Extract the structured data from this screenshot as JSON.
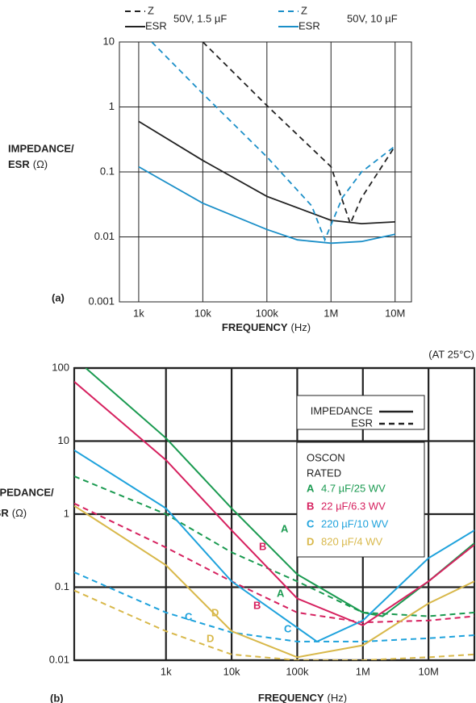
{
  "chart_data": [
    {
      "type": "line",
      "panel": "(a)",
      "xlabel": "FREQUENCY",
      "xlabel_unit": "(Hz)",
      "ylabel": [
        "IMPEDANCE/",
        "ESR"
      ],
      "ylabel_unit": "(Ω)",
      "log_x": true,
      "log_y": true,
      "grid": true,
      "xlim": [
        500,
        18000000
      ],
      "ylim": [
        0.001,
        10
      ],
      "xticks": [
        {
          "value": 1000,
          "label": "1k"
        },
        {
          "value": 10000,
          "label": "10k"
        },
        {
          "value": 100000,
          "label": "100k"
        },
        {
          "value": 1000000,
          "label": "1M"
        },
        {
          "value": 10000000,
          "label": "10M"
        }
      ],
      "yticks": [
        0.001,
        0.01,
        0.1,
        1,
        10
      ],
      "legend_groups": [
        "50V, 1.5 µF",
        "50V, 10 µF"
      ],
      "series": [
        {
          "name": "Z",
          "style": "dashed",
          "color": "#222222",
          "x": [
            10000,
            100000,
            1000000,
            2000000,
            3000000,
            10000000
          ],
          "values": [
            10,
            1.05,
            0.12,
            0.016,
            0.04,
            0.25
          ]
        },
        {
          "name": "ESR",
          "style": "solid",
          "color": "#222222",
          "x": [
            1000,
            10000,
            100000,
            1000000,
            3000000,
            10000000
          ],
          "values": [
            0.6,
            0.15,
            0.042,
            0.018,
            0.016,
            0.017
          ]
        },
        {
          "name": "Z",
          "style": "dashed",
          "color": "#1b8fc8",
          "x": [
            1600,
            10000,
            100000,
            500000,
            800000,
            1500000,
            3000000,
            10000000
          ],
          "values": [
            10,
            1.6,
            0.17,
            0.03,
            0.009,
            0.04,
            0.1,
            0.25
          ]
        },
        {
          "name": "ESR",
          "style": "solid",
          "color": "#1b8fc8",
          "x": [
            1000,
            10000,
            100000,
            300000,
            1000000,
            3000000,
            10000000
          ],
          "values": [
            0.12,
            0.033,
            0.013,
            0.009,
            0.008,
            0.0085,
            0.011
          ]
        }
      ]
    },
    {
      "type": "line",
      "panel": "(b)",
      "subtitle": "(AT 25°C)",
      "xlabel": "FREQUENCY",
      "xlabel_unit": "(Hz)",
      "ylabel": [
        "IMPEDANCE/",
        "ESR"
      ],
      "ylabel_unit": "(Ω)",
      "log_x": true,
      "log_y": true,
      "grid": true,
      "xlim": [
        40,
        50000000
      ],
      "ylim": [
        0.01,
        100
      ],
      "xticks": [
        {
          "value": 1000,
          "label": "1k"
        },
        {
          "value": 10000,
          "label": "10k"
        },
        {
          "value": 100000,
          "label": "100k"
        },
        {
          "value": 1000000,
          "label": "1M"
        },
        {
          "value": 10000000,
          "label": "10M"
        }
      ],
      "yticks": [
        0.01,
        0.1,
        1,
        10,
        100
      ],
      "line_styles": [
        {
          "name": "IMPEDANCE",
          "style": "solid"
        },
        {
          "name": "ESR",
          "style": "dashed"
        }
      ],
      "legend_title": [
        "OSCON",
        "RATED"
      ],
      "series": [
        {
          "letter": "A",
          "name": "4.7 µF/25 WV",
          "color": "#1a9a50",
          "impedance": {
            "x": [
              60,
              1000,
              10000,
              100000,
              1000000,
              2000000,
              10000000,
              50000000
            ],
            "values": [
              100,
              11,
              1.2,
              0.15,
              0.045,
              0.04,
              0.12,
              0.4
            ]
          },
          "esr": {
            "x": [
              40,
              1000,
              10000,
              100000,
              1000000,
              10000000,
              50000000
            ],
            "values": [
              3.3,
              1,
              0.3,
              0.12,
              0.045,
              0.04,
              0.045
            ]
          }
        },
        {
          "letter": "B",
          "name": "22 µF/6.3 WV",
          "color": "#d6215f",
          "impedance": {
            "x": [
              40,
              1000,
              10000,
              100000,
              1000000,
              10000000,
              50000000
            ],
            "values": [
              65,
              5.5,
              0.6,
              0.07,
              0.03,
              0.12,
              0.38
            ]
          },
          "esr": {
            "x": [
              40,
              1000,
              10000,
              100000,
              1000000,
              10000000,
              50000000
            ],
            "values": [
              1.4,
              0.35,
              0.12,
              0.045,
              0.033,
              0.035,
              0.04
            ]
          }
        },
        {
          "letter": "C",
          "name": "220 µF/10 WV",
          "color": "#1ea2dc",
          "impedance": {
            "x": [
              40,
              1000,
              10000,
              200000,
              1000000,
              10000000,
              50000000
            ],
            "values": [
              7.5,
              1.2,
              0.12,
              0.018,
              0.035,
              0.25,
              0.6
            ]
          },
          "esr": {
            "x": [
              40,
              1000,
              10000,
              100000,
              1000000,
              10000000,
              50000000
            ],
            "values": [
              0.16,
              0.045,
              0.024,
              0.018,
              0.018,
              0.02,
              0.022
            ]
          }
        },
        {
          "letter": "D",
          "name": "820 µF/4 WV",
          "color": "#d8b84a",
          "impedance": {
            "x": [
              40,
              1000,
              10000,
              100000,
              1000000,
              10000000,
              50000000
            ],
            "values": [
              1.3,
              0.2,
              0.025,
              0.011,
              0.016,
              0.06,
              0.12
            ]
          },
          "esr": {
            "x": [
              40,
              1000,
              10000,
              100000,
              1000000,
              10000000,
              50000000
            ],
            "values": [
              0.09,
              0.025,
              0.012,
              0.01,
              0.01,
              0.011,
              0.012
            ]
          }
        }
      ],
      "annotations": [
        "A",
        "A",
        "B",
        "B",
        "C",
        "C",
        "D",
        "D"
      ]
    }
  ]
}
